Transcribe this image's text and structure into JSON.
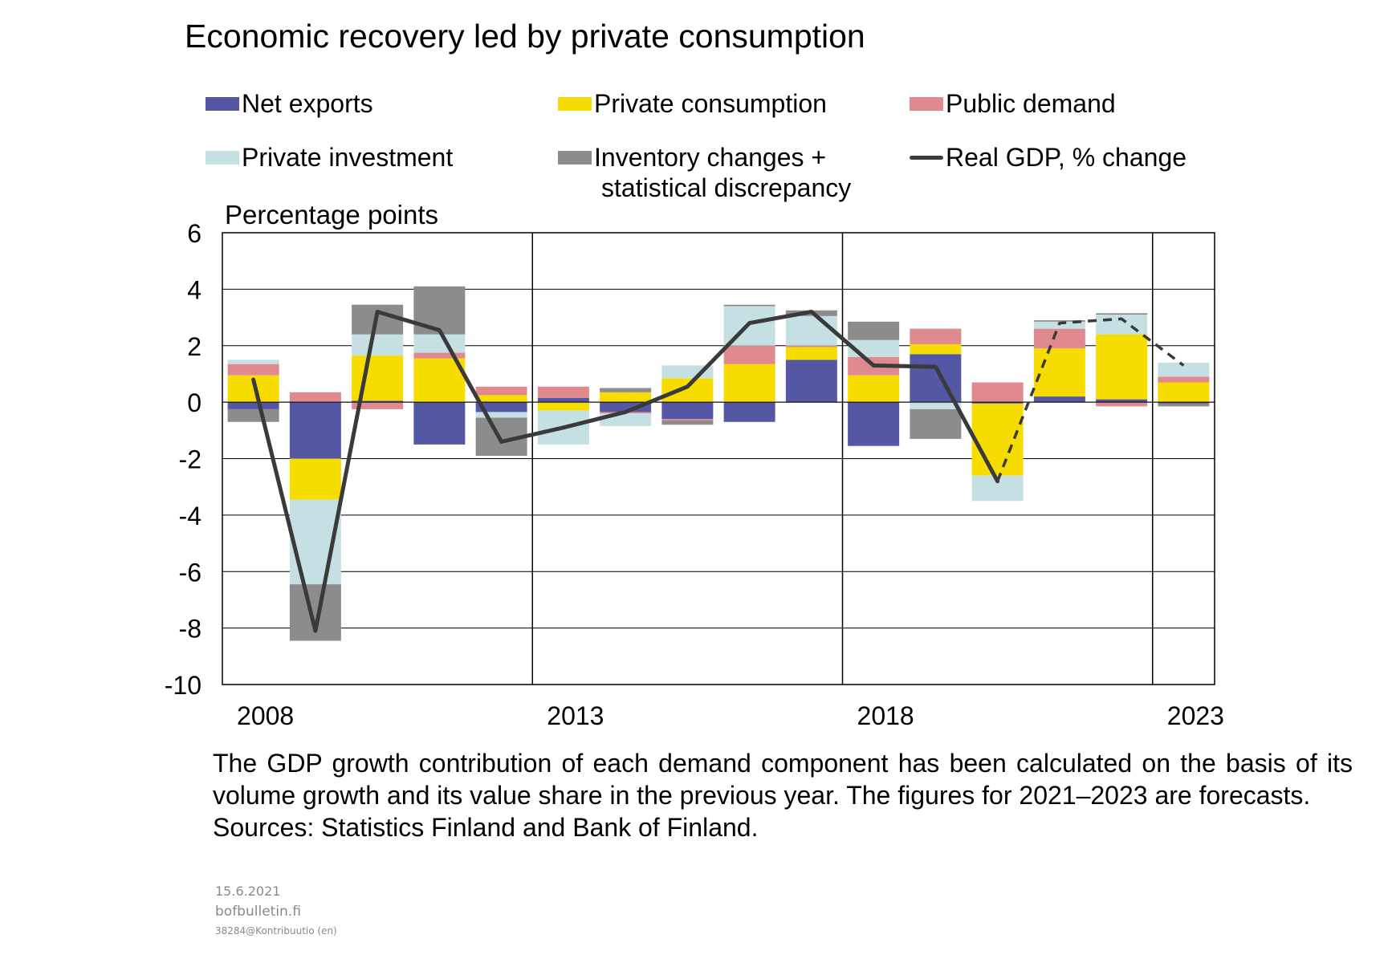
{
  "title": "Economic recovery led by private consumption",
  "legend": {
    "net_exports": "Net exports",
    "private_consumption": "Private consumption",
    "public_demand": "Public demand",
    "private_investment": "Private investment",
    "inventory_line1": "Inventory changes +",
    "inventory_line2": "statistical discrepancy",
    "real_gdp": "Real GDP, % change"
  },
  "colors": {
    "net_exports": "#5457a4",
    "private_consumption": "#f7dc00",
    "public_demand": "#e0898f",
    "private_investment": "#c5e0e3",
    "inventory": "#8c8c8c",
    "real_gdp": "#3a3a3a",
    "grid": "#000000"
  },
  "notes": {
    "line1": "The GDP growth contribution of each demand component has been calculated on the basis of its volume growth and its value share in the previous year. The figures for 2021–2023 are forecasts.",
    "line2": "Sources: Statistics Finland and Bank of Finland."
  },
  "footer": {
    "date": "15.6.2021",
    "site": "bofbulletin.fi",
    "code": "38284@Kontribuutio  (en)"
  },
  "chart_data": {
    "type": "bar",
    "stacked": true,
    "ylabel": "Percentage points",
    "ylim": [
      -10,
      6
    ],
    "yticks": [
      6,
      4,
      2,
      0,
      -2,
      -4,
      -6,
      -8,
      -10
    ],
    "categories": [
      "2008",
      "2009",
      "2010",
      "2011",
      "2012",
      "2013",
      "2014",
      "2015",
      "2016",
      "2017",
      "2018",
      "2019",
      "2020",
      "2021",
      "2022",
      "2023"
    ],
    "xtick_labels": [
      "2008",
      "2013",
      "2018",
      "2023"
    ],
    "xtick_years": [
      2008,
      2013,
      2018,
      2023
    ],
    "vertical_separators_after": [
      "2012",
      "2017",
      "2022"
    ],
    "grid": true,
    "series": [
      {
        "name": "Net exports",
        "key": "net_exports",
        "values": [
          -0.25,
          -2.0,
          0.05,
          -1.5,
          -0.35,
          0.15,
          -0.35,
          -0.6,
          -0.7,
          1.5,
          -1.55,
          1.7,
          -0.05,
          0.2,
          0.1,
          -0.05
        ]
      },
      {
        "name": "Private consumption",
        "key": "private_consumption",
        "values": [
          0.95,
          -1.45,
          1.6,
          1.55,
          0.25,
          -0.3,
          0.35,
          0.85,
          1.35,
          0.45,
          0.95,
          0.35,
          -2.55,
          1.7,
          2.3,
          0.7
        ]
      },
      {
        "name": "Public demand",
        "key": "public_demand",
        "values": [
          0.4,
          0.35,
          -0.25,
          0.2,
          0.3,
          0.4,
          -0.05,
          -0.05,
          0.65,
          0.05,
          0.65,
          0.55,
          0.7,
          0.7,
          -0.15,
          0.2
        ]
      },
      {
        "name": "Private investment",
        "key": "private_investment",
        "values": [
          0.15,
          -3.0,
          0.75,
          0.65,
          -0.2,
          -1.2,
          -0.45,
          0.45,
          1.4,
          1.05,
          0.6,
          -0.25,
          -0.9,
          0.25,
          0.7,
          0.5
        ]
      },
      {
        "name": "Inventory changes + statistical discrepancy",
        "key": "inventory",
        "values": [
          -0.45,
          -2.0,
          1.05,
          1.7,
          -1.35,
          0.0,
          0.15,
          -0.15,
          0.05,
          0.2,
          0.65,
          -1.05,
          0.0,
          0.05,
          0.05,
          -0.1
        ]
      }
    ],
    "line": {
      "name": "Real GDP, % change",
      "key": "real_gdp",
      "values": [
        0.8,
        -8.1,
        3.2,
        2.55,
        -1.4,
        -0.9,
        -0.35,
        0.55,
        2.8,
        3.2,
        1.3,
        1.25,
        -2.8,
        2.8,
        2.95,
        1.3
      ],
      "forecast_from": "2020"
    }
  }
}
